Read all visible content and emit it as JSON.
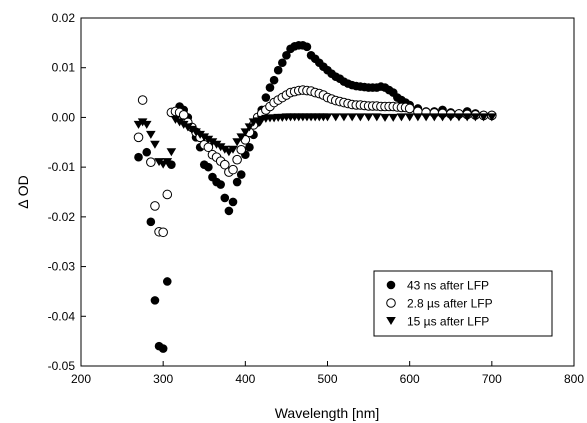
{
  "chart_data": {
    "type": "scatter",
    "title": "",
    "xlabel": "Wavelength [nm]",
    "ylabel": "Δ OD",
    "xlim": [
      200,
      800
    ],
    "ylim": [
      -0.05,
      0.02
    ],
    "xticks": [
      200,
      300,
      400,
      500,
      600,
      700,
      800
    ],
    "yticks": [
      -0.05,
      -0.04,
      -0.03,
      -0.02,
      -0.01,
      0.0,
      0.01,
      0.02
    ],
    "xtick_labels": [
      "200",
      "300",
      "400",
      "500",
      "600",
      "700",
      "800"
    ],
    "ytick_labels": [
      "-0.05",
      "-0.04",
      "-0.03",
      "-0.02",
      "-0.01",
      "0.00",
      "0.01",
      "0.02"
    ],
    "grid": false,
    "legend_position": "bottom-right",
    "series": [
      {
        "name": "43 ns after LFP",
        "marker": "filled-circle",
        "color": "#000000",
        "x": [
          270,
          280,
          285,
          290,
          295,
          300,
          305,
          310,
          315,
          320,
          325,
          330,
          335,
          340,
          345,
          350,
          355,
          360,
          365,
          370,
          375,
          380,
          385,
          390,
          395,
          400,
          405,
          410,
          415,
          420,
          425,
          430,
          435,
          440,
          445,
          450,
          455,
          460,
          465,
          470,
          475,
          480,
          485,
          490,
          495,
          500,
          505,
          510,
          515,
          520,
          525,
          530,
          535,
          540,
          545,
          550,
          555,
          560,
          565,
          570,
          575,
          580,
          585,
          590,
          595,
          600,
          610,
          620,
          630,
          640,
          650,
          660,
          670,
          680,
          690,
          700
        ],
        "y": [
          -0.008,
          -0.007,
          -0.021,
          -0.0368,
          -0.046,
          -0.0465,
          -0.033,
          -0.0095,
          0.001,
          0.0022,
          0.0015,
          0.0,
          -0.002,
          -0.004,
          -0.006,
          -0.0095,
          -0.01,
          -0.012,
          -0.013,
          -0.0135,
          -0.0162,
          -0.0188,
          -0.017,
          -0.013,
          -0.0115,
          -0.0075,
          -0.006,
          -0.0035,
          -0.001,
          0.0015,
          0.004,
          0.006,
          0.0075,
          0.0095,
          0.011,
          0.0125,
          0.0138,
          0.0143,
          0.0145,
          0.0145,
          0.0142,
          0.0125,
          0.0118,
          0.011,
          0.0102,
          0.0095,
          0.0088,
          0.0082,
          0.0078,
          0.0072,
          0.0068,
          0.0065,
          0.0063,
          0.0062,
          0.0061,
          0.006,
          0.006,
          0.006,
          0.0062,
          0.006,
          0.0055,
          0.005,
          0.004,
          0.0035,
          0.003,
          0.0025,
          0.0018,
          0.0012,
          0.0012,
          0.0015,
          0.001,
          0.0008,
          0.0012,
          0.0008,
          0.0005,
          0.0005
        ]
      },
      {
        "name": "2.8 µs after LFP",
        "marker": "open-circle",
        "color": "#000000",
        "x": [
          270,
          275,
          285,
          290,
          295,
          300,
          305,
          310,
          315,
          320,
          325,
          330,
          335,
          340,
          345,
          350,
          355,
          360,
          365,
          370,
          375,
          380,
          385,
          390,
          395,
          400,
          405,
          410,
          415,
          420,
          425,
          430,
          435,
          440,
          445,
          450,
          455,
          460,
          465,
          470,
          475,
          480,
          485,
          490,
          495,
          500,
          505,
          510,
          515,
          520,
          525,
          530,
          535,
          540,
          545,
          550,
          555,
          560,
          565,
          570,
          575,
          580,
          585,
          590,
          595,
          600,
          610,
          620,
          630,
          640,
          650,
          660,
          670,
          680,
          690,
          700
        ],
        "y": [
          -0.004,
          0.0035,
          -0.009,
          -0.0178,
          -0.023,
          -0.0231,
          -0.0155,
          0.001,
          0.0012,
          0.001,
          0.0005,
          -0.001,
          -0.002,
          -0.003,
          -0.004,
          -0.0055,
          -0.006,
          -0.0075,
          -0.008,
          -0.0088,
          -0.0095,
          -0.011,
          -0.0105,
          -0.0085,
          -0.0065,
          -0.0045,
          -0.003,
          -0.0015,
          0.0,
          0.0008,
          0.0015,
          0.0022,
          0.003,
          0.0035,
          0.004,
          0.0045,
          0.005,
          0.0052,
          0.0054,
          0.0055,
          0.0054,
          0.0053,
          0.005,
          0.0048,
          0.0045,
          0.004,
          0.0037,
          0.0034,
          0.0032,
          0.003,
          0.0028,
          0.0026,
          0.0025,
          0.0025,
          0.0024,
          0.0023,
          0.0023,
          0.0023,
          0.0022,
          0.0022,
          0.0022,
          0.0022,
          0.0021,
          0.002,
          0.002,
          0.0018,
          0.0012,
          0.001,
          0.0009,
          0.0008,
          0.0007,
          0.0007,
          0.0006,
          0.0005,
          0.0004,
          0.0004
        ]
      },
      {
        "name": "15 µs after LFP",
        "marker": "filled-triangle-down",
        "color": "#000000",
        "x": [
          270,
          275,
          280,
          285,
          290,
          295,
          300,
          305,
          310,
          315,
          320,
          325,
          330,
          335,
          340,
          345,
          350,
          355,
          360,
          365,
          370,
          375,
          380,
          385,
          390,
          395,
          400,
          405,
          410,
          415,
          420,
          425,
          430,
          435,
          440,
          445,
          450,
          455,
          460,
          465,
          470,
          475,
          480,
          485,
          490,
          495,
          500,
          510,
          520,
          530,
          540,
          550,
          560,
          570,
          580,
          590,
          600,
          610,
          620,
          630,
          640,
          650,
          660,
          670,
          680,
          690,
          700
        ],
        "y": [
          -0.0015,
          -0.001,
          -0.0015,
          -0.0035,
          -0.0055,
          -0.009,
          -0.0095,
          -0.009,
          -0.007,
          -0.0005,
          -0.001,
          -0.0015,
          -0.002,
          -0.0025,
          -0.003,
          -0.0035,
          -0.004,
          -0.0045,
          -0.005,
          -0.0055,
          -0.006,
          -0.0065,
          -0.007,
          -0.0065,
          -0.005,
          -0.004,
          -0.003,
          -0.002,
          -0.001,
          -0.0008,
          -0.0005,
          -0.0003,
          -0.0002,
          -0.0002,
          -0.0001,
          -0.0001,
          0.0,
          0.0,
          0.0,
          0.0,
          0.0,
          0.0,
          0.0,
          0.0,
          0.0,
          0.0,
          0.0,
          0.0,
          0.0,
          0.0,
          0.0,
          0.0,
          0.0,
          -0.0001,
          -0.0001,
          0.0,
          0.0,
          0.0,
          0.0,
          0.0,
          0.0,
          0.0,
          0.0,
          0.0,
          0.0,
          0.0,
          0.0
        ]
      }
    ]
  }
}
